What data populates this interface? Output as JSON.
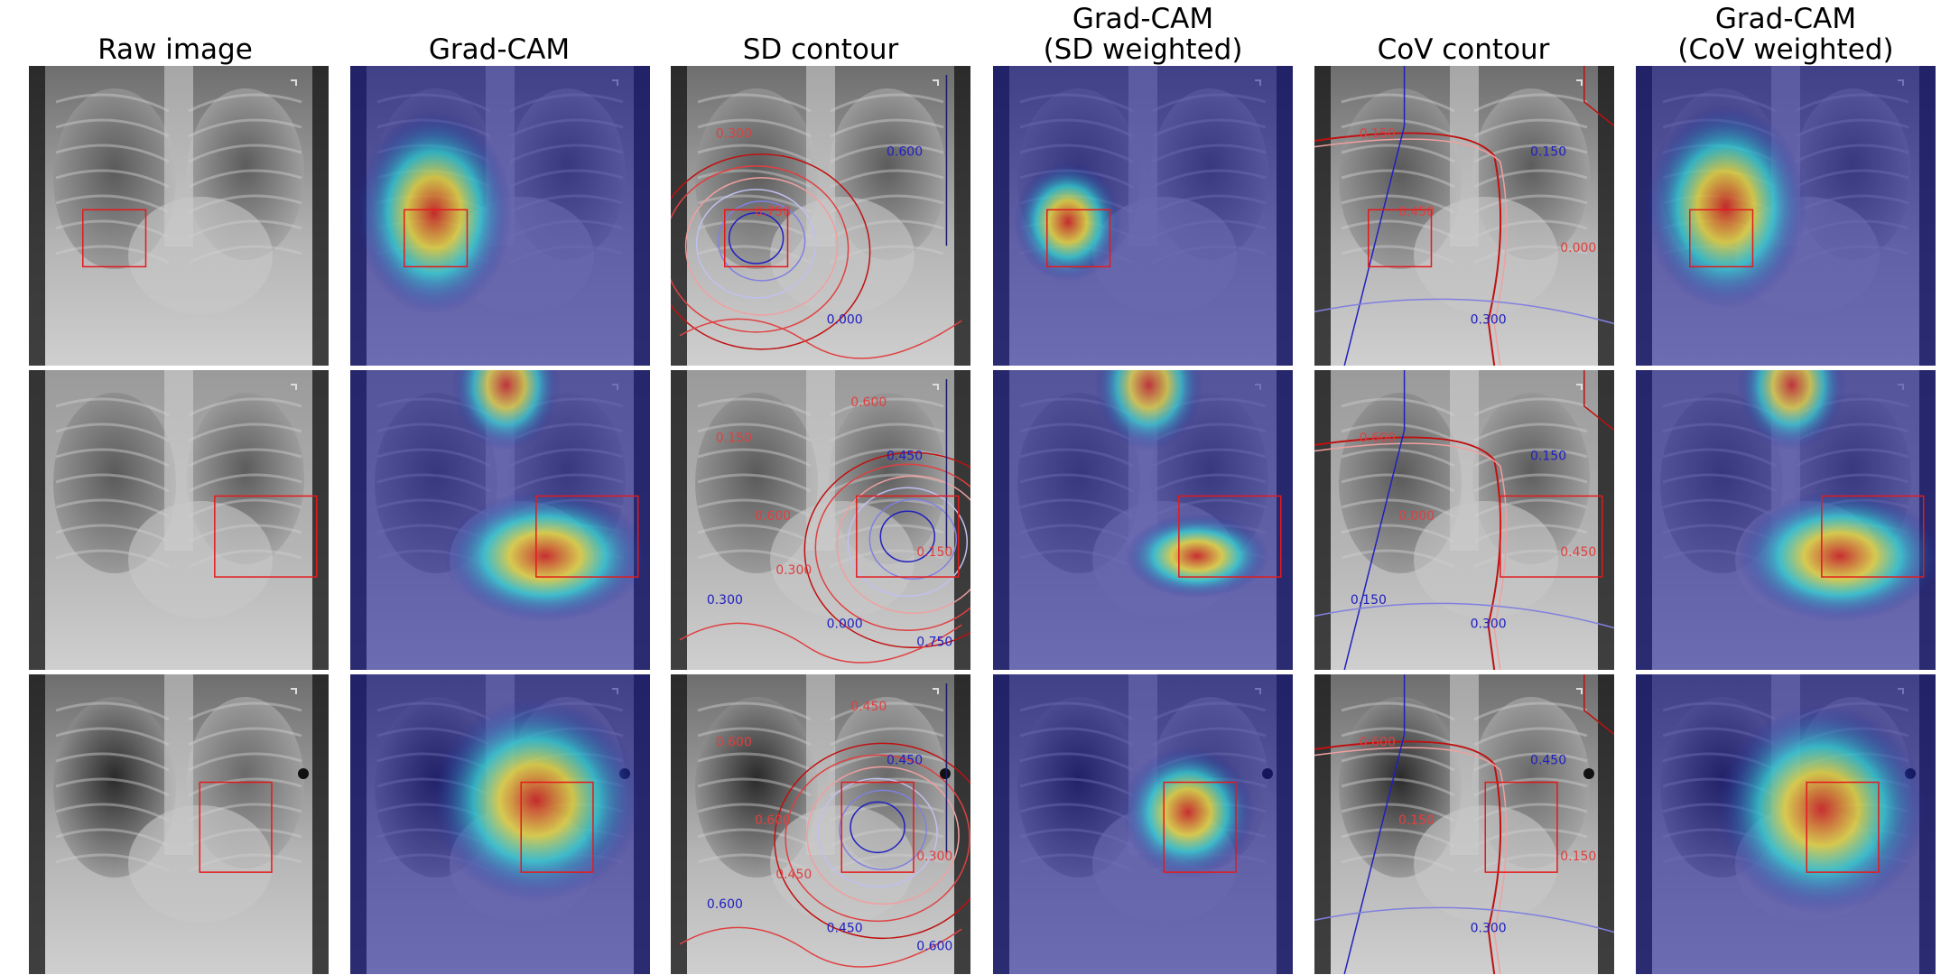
{
  "columns": [
    {
      "title": "Raw image"
    },
    {
      "title": "Grad-CAM"
    },
    {
      "title": "SD contour"
    },
    {
      "title": "Grad-CAM\n(SD weighted)"
    },
    {
      "title": "CoV contour"
    },
    {
      "title": "Grad-CAM\n(CoV weighted)"
    }
  ],
  "contour_levels": [
    "0.000",
    "0.150",
    "0.300",
    "0.450",
    "0.600",
    "0.750"
  ],
  "colors": {
    "bbox": "#e41a1c",
    "heat_low": "#1c1c9a",
    "heat_cyan": "#2fe0d8",
    "heat_yellow": "#f2e23a",
    "heat_red": "#d8261c",
    "contour_blue": "#1a1ab0",
    "contour_red": "#c01010"
  },
  "rows": [
    {
      "sd_labels": [
        "0.300",
        "0.600",
        "0.750",
        "0.000"
      ],
      "cov_labels": [
        "0.150",
        "0.150",
        "0.450",
        "0.300",
        "0.000"
      ]
    },
    {
      "sd_labels": [
        "0.150",
        "0.450",
        "0.600",
        "0.000",
        "0.150",
        "0.300",
        "0.600",
        "0.750",
        "0.300"
      ],
      "cov_labels": [
        "0.600",
        "0.150",
        "0.000",
        "0.300",
        "0.450",
        "0.150"
      ]
    },
    {
      "sd_labels": [
        "0.600",
        "0.450",
        "0.600",
        "0.450",
        "0.300",
        "0.600",
        "0.450",
        "0.600",
        "0.450"
      ],
      "cov_labels": [
        "0.600",
        "0.450",
        "0.150",
        "0.300",
        "0.150"
      ]
    }
  ]
}
